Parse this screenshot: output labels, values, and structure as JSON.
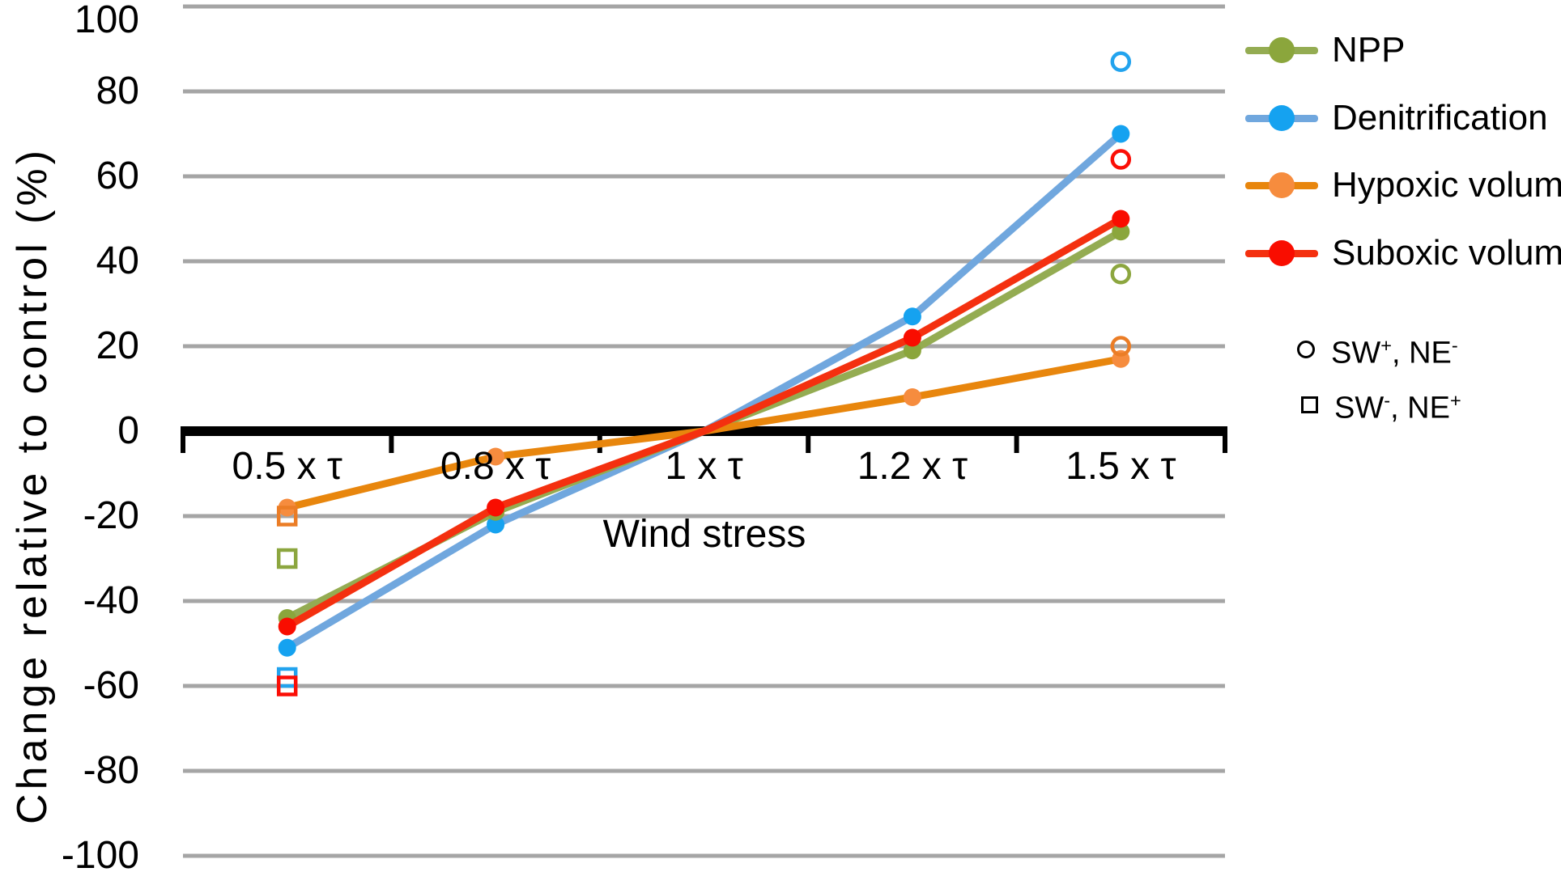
{
  "chart_data": {
    "type": "line",
    "title": "",
    "xlabel": "Wind stress",
    "ylabel": "Change relative to control (%)",
    "x_categories": [
      "0.5 x τ",
      "0.8 x τ",
      "1 x τ",
      "1.2 x τ",
      "1.5 x τ"
    ],
    "x_tau_multipliers": [
      0.5,
      0.8,
      1.0,
      1.2,
      1.5
    ],
    "ylim": [
      -100,
      100
    ],
    "y_tick_step": 20,
    "y_tick_labels": [
      "100",
      "80",
      "60",
      "40",
      "20",
      "0",
      "-20",
      "-40",
      "-60",
      "-80",
      "-100"
    ],
    "grid": "horizontal",
    "grid_color": "#A5A5A5",
    "axis_color": "#000000",
    "legend_position": "right",
    "marker_hidden_at_category_index": 2,
    "series": [
      {
        "name": "NPP",
        "line_color": "#94AC52",
        "marker_color": "#8BA63C",
        "open_color": "#8CA63F",
        "values": [
          -44,
          -19,
          0,
          19,
          47
        ]
      },
      {
        "name": "Denitrification",
        "line_color": "#70A7DE",
        "marker_color": "#15A2F0",
        "open_color": "#22A3EE",
        "values": [
          -51,
          -22,
          0,
          27,
          70
        ]
      },
      {
        "name": "Hypoxic volume",
        "line_color": "#E8860D",
        "marker_color": "#F68C3E",
        "open_color": "#EB7D26",
        "values": [
          -18,
          -6,
          0,
          8,
          17
        ]
      },
      {
        "name": "Suboxic volume",
        "line_color": "#F4300F",
        "marker_color": "#F90D00",
        "open_color": "#FB0E06",
        "values": [
          -46,
          -18,
          0,
          22,
          50
        ]
      }
    ],
    "sensitivity_points": {
      "open_circle": {
        "legend_label": "SW+, NE-",
        "x_category": "1.5 x τ",
        "values": [
          37,
          87,
          20,
          64
        ]
      },
      "open_square": {
        "legend_label": "SW-, NE+",
        "x_category": "0.5 x τ",
        "values": [
          -30,
          -58,
          -20,
          -60
        ]
      }
    }
  },
  "legend": {
    "circle_item": {
      "base1": "SW",
      "sup1": "+",
      "base2": ", NE",
      "sup2": "-"
    },
    "square_item": {
      "base1": "SW",
      "sup1": "-",
      "base2": ", NE",
      "sup2": "+"
    }
  }
}
